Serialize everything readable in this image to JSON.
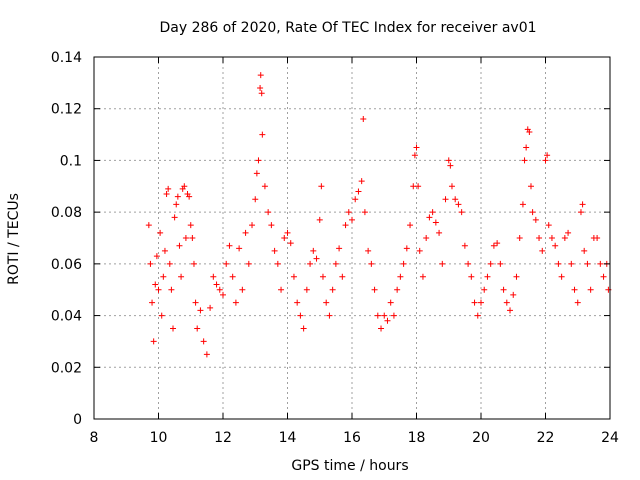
{
  "chart_data": {
    "type": "scatter",
    "title": "Day 286 of 2020, Rate Of TEC Index for receiver av01",
    "xlabel": "GPS time / hours",
    "ylabel": "ROTI / TECUs",
    "xlim": [
      8,
      24
    ],
    "ylim": [
      0,
      0.14
    ],
    "xticks": [
      8,
      10,
      12,
      14,
      16,
      18,
      20,
      22,
      24
    ],
    "yticks": [
      0,
      0.02,
      0.04,
      0.06,
      0.08,
      0.1,
      0.12,
      0.14
    ],
    "ytick_labels": [
      "0",
      "0.02",
      "0.04",
      "0.06",
      "0.08",
      "0.1",
      "0.12",
      "0.14"
    ],
    "xtick_labels": [
      "8",
      "10",
      "12",
      "14",
      "16",
      "18",
      "20",
      "22",
      "24"
    ],
    "grid": true,
    "marker": "+",
    "color": "#ff0000",
    "series": [
      {
        "points": [
          [
            9.7,
            0.075
          ],
          [
            9.75,
            0.06
          ],
          [
            9.8,
            0.045
          ],
          [
            9.85,
            0.03
          ],
          [
            9.9,
            0.052
          ],
          [
            9.95,
            0.063
          ],
          [
            10.0,
            0.05
          ],
          [
            10.05,
            0.072
          ],
          [
            10.1,
            0.04
          ],
          [
            10.15,
            0.055
          ],
          [
            10.2,
            0.065
          ],
          [
            10.25,
            0.087
          ],
          [
            10.3,
            0.089
          ],
          [
            10.35,
            0.06
          ],
          [
            10.4,
            0.05
          ],
          [
            10.45,
            0.035
          ],
          [
            10.5,
            0.078
          ],
          [
            10.55,
            0.083
          ],
          [
            10.6,
            0.086
          ],
          [
            10.65,
            0.067
          ],
          [
            10.7,
            0.055
          ],
          [
            10.75,
            0.089
          ],
          [
            10.8,
            0.09
          ],
          [
            10.85,
            0.07
          ],
          [
            10.9,
            0.087
          ],
          [
            10.95,
            0.086
          ],
          [
            11.0,
            0.075
          ],
          [
            11.05,
            0.07
          ],
          [
            11.1,
            0.06
          ],
          [
            11.15,
            0.045
          ],
          [
            11.2,
            0.035
          ],
          [
            11.3,
            0.042
          ],
          [
            11.4,
            0.03
          ],
          [
            11.5,
            0.025
          ],
          [
            11.6,
            0.043
          ],
          [
            11.7,
            0.055
          ],
          [
            11.8,
            0.052
          ],
          [
            11.9,
            0.05
          ],
          [
            12.0,
            0.048
          ],
          [
            12.1,
            0.06
          ],
          [
            12.2,
            0.067
          ],
          [
            12.3,
            0.055
          ],
          [
            12.4,
            0.045
          ],
          [
            12.5,
            0.066
          ],
          [
            12.6,
            0.05
          ],
          [
            12.7,
            0.072
          ],
          [
            12.8,
            0.06
          ],
          [
            12.9,
            0.075
          ],
          [
            13.0,
            0.085
          ],
          [
            13.05,
            0.095
          ],
          [
            13.1,
            0.1
          ],
          [
            13.15,
            0.128
          ],
          [
            13.17,
            0.133
          ],
          [
            13.2,
            0.126
          ],
          [
            13.22,
            0.11
          ],
          [
            13.3,
            0.09
          ],
          [
            13.4,
            0.08
          ],
          [
            13.5,
            0.075
          ],
          [
            13.6,
            0.065
          ],
          [
            13.7,
            0.06
          ],
          [
            13.8,
            0.05
          ],
          [
            13.9,
            0.07
          ],
          [
            14.0,
            0.072
          ],
          [
            14.1,
            0.068
          ],
          [
            14.2,
            0.055
          ],
          [
            14.3,
            0.045
          ],
          [
            14.4,
            0.04
          ],
          [
            14.5,
            0.035
          ],
          [
            14.6,
            0.05
          ],
          [
            14.7,
            0.06
          ],
          [
            14.8,
            0.065
          ],
          [
            14.9,
            0.062
          ],
          [
            15.0,
            0.077
          ],
          [
            15.05,
            0.09
          ],
          [
            15.1,
            0.055
          ],
          [
            15.2,
            0.045
          ],
          [
            15.3,
            0.04
          ],
          [
            15.4,
            0.05
          ],
          [
            15.5,
            0.06
          ],
          [
            15.6,
            0.066
          ],
          [
            15.7,
            0.055
          ],
          [
            15.8,
            0.075
          ],
          [
            15.9,
            0.08
          ],
          [
            16.0,
            0.077
          ],
          [
            16.1,
            0.085
          ],
          [
            16.2,
            0.088
          ],
          [
            16.3,
            0.092
          ],
          [
            16.35,
            0.116
          ],
          [
            16.4,
            0.08
          ],
          [
            16.5,
            0.065
          ],
          [
            16.6,
            0.06
          ],
          [
            16.7,
            0.05
          ],
          [
            16.8,
            0.04
          ],
          [
            16.9,
            0.035
          ],
          [
            17.0,
            0.04
          ],
          [
            17.1,
            0.038
          ],
          [
            17.2,
            0.045
          ],
          [
            17.3,
            0.04
          ],
          [
            17.4,
            0.05
          ],
          [
            17.5,
            0.055
          ],
          [
            17.6,
            0.06
          ],
          [
            17.7,
            0.066
          ],
          [
            17.8,
            0.075
          ],
          [
            17.9,
            0.09
          ],
          [
            17.95,
            0.102
          ],
          [
            18.0,
            0.105
          ],
          [
            18.05,
            0.09
          ],
          [
            18.1,
            0.065
          ],
          [
            18.2,
            0.055
          ],
          [
            18.3,
            0.07
          ],
          [
            18.4,
            0.078
          ],
          [
            18.5,
            0.08
          ],
          [
            18.6,
            0.076
          ],
          [
            18.7,
            0.072
          ],
          [
            18.8,
            0.06
          ],
          [
            18.9,
            0.085
          ],
          [
            19.0,
            0.1
          ],
          [
            19.05,
            0.098
          ],
          [
            19.1,
            0.09
          ],
          [
            19.2,
            0.085
          ],
          [
            19.3,
            0.083
          ],
          [
            19.4,
            0.08
          ],
          [
            19.5,
            0.067
          ],
          [
            19.6,
            0.06
          ],
          [
            19.7,
            0.055
          ],
          [
            19.8,
            0.045
          ],
          [
            19.9,
            0.04
          ],
          [
            20.0,
            0.045
          ],
          [
            20.1,
            0.05
          ],
          [
            20.2,
            0.055
          ],
          [
            20.3,
            0.06
          ],
          [
            20.4,
            0.067
          ],
          [
            20.5,
            0.068
          ],
          [
            20.6,
            0.06
          ],
          [
            20.7,
            0.05
          ],
          [
            20.8,
            0.045
          ],
          [
            20.9,
            0.042
          ],
          [
            21.0,
            0.048
          ],
          [
            21.1,
            0.055
          ],
          [
            21.2,
            0.07
          ],
          [
            21.3,
            0.083
          ],
          [
            21.35,
            0.1
          ],
          [
            21.4,
            0.105
          ],
          [
            21.45,
            0.112
          ],
          [
            21.5,
            0.111
          ],
          [
            21.55,
            0.09
          ],
          [
            21.6,
            0.08
          ],
          [
            21.7,
            0.077
          ],
          [
            21.8,
            0.07
          ],
          [
            21.9,
            0.065
          ],
          [
            22.0,
            0.1
          ],
          [
            22.05,
            0.102
          ],
          [
            22.1,
            0.075
          ],
          [
            22.2,
            0.07
          ],
          [
            22.3,
            0.067
          ],
          [
            22.4,
            0.06
          ],
          [
            22.5,
            0.055
          ],
          [
            22.6,
            0.07
          ],
          [
            22.7,
            0.072
          ],
          [
            22.8,
            0.06
          ],
          [
            22.9,
            0.05
          ],
          [
            23.0,
            0.045
          ],
          [
            23.1,
            0.08
          ],
          [
            23.15,
            0.083
          ],
          [
            23.2,
            0.065
          ],
          [
            23.3,
            0.06
          ],
          [
            23.4,
            0.05
          ],
          [
            23.5,
            0.07
          ],
          [
            23.6,
            0.07
          ],
          [
            23.7,
            0.06
          ],
          [
            23.8,
            0.055
          ],
          [
            23.9,
            0.06
          ],
          [
            23.95,
            0.05
          ]
        ]
      }
    ]
  }
}
